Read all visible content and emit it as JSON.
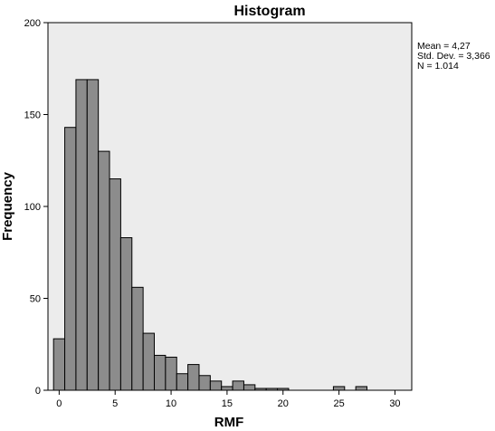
{
  "chart_data": {
    "type": "bar",
    "title": "Histogram",
    "xlabel": "RMF",
    "ylabel": "Frequency",
    "bin_width": 1,
    "bin_start": -0.5,
    "values": [
      28,
      143,
      169,
      169,
      130,
      115,
      83,
      56,
      31,
      19,
      18,
      9,
      14,
      8,
      5,
      2,
      5,
      3,
      1,
      1,
      1,
      0,
      0,
      0,
      0,
      2,
      0,
      2,
      0,
      0,
      0
    ],
    "x_ticks": [
      0,
      5,
      10,
      15,
      20,
      25,
      30
    ],
    "y_ticks": [
      0,
      50,
      100,
      150,
      200
    ],
    "xlim": [
      -1,
      31.5
    ],
    "ylim": [
      0,
      200
    ],
    "bar_color": "#8c8c8c",
    "plot_background": "#ececec",
    "grid": false,
    "stats": {
      "mean": "Mean = 4,27",
      "std_dev": "Std. Dev. = 3,366",
      "n": "N = 1.014"
    }
  }
}
